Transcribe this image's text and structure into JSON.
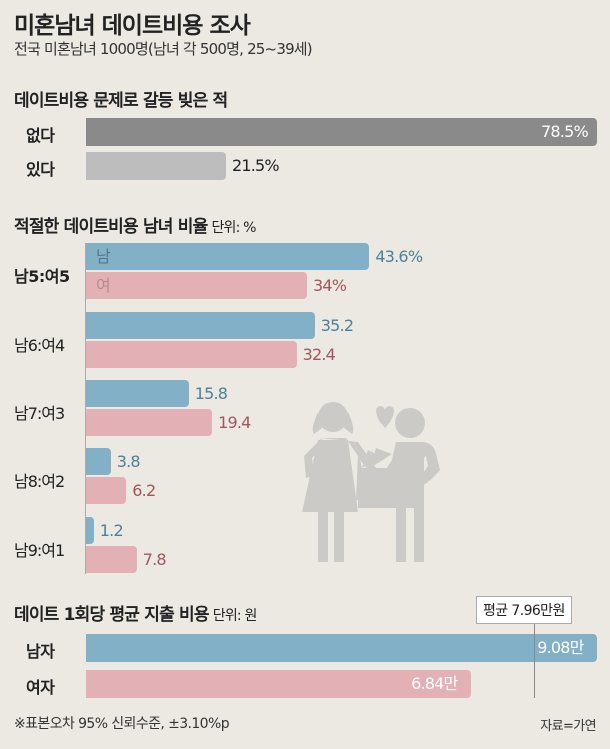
{
  "title": "미혼남녀 데이트비용 조사",
  "subtitle": "전국 미혼남녀 1000명(남녀 각 500명, 25~39세)",
  "colors": {
    "background": "#ebe9e2",
    "no": "#8a8a8a",
    "yes": "#bdbdbd",
    "male": "#82b0c7",
    "female": "#e3b1b5",
    "male_text": "#4d8199",
    "female_text": "#a3555f",
    "illustration": "#cbcac6"
  },
  "illustration": "couple-paying-icon",
  "chart_data": [
    {
      "type": "bar",
      "orientation": "horizontal",
      "title": "데이트비용 문제로 갈등 빚은 적",
      "categories": [
        "없다",
        "있다"
      ],
      "values": [
        78.5,
        21.5
      ],
      "labels": [
        "78.5%",
        "21.5%"
      ],
      "unit": "%"
    },
    {
      "type": "bar",
      "orientation": "horizontal",
      "title": "적절한 데이트비용 남녀 비율",
      "unit_label": "단위: %",
      "categories": [
        "남5:여5",
        "남6:여4",
        "남7:여3",
        "남8:여2",
        "남9:여1"
      ],
      "series": [
        {
          "name": "남",
          "values": [
            43.6,
            35.2,
            15.8,
            3.8,
            1.2
          ],
          "labels": [
            "43.6%",
            "35.2",
            "15.8",
            "3.8",
            "1.2"
          ]
        },
        {
          "name": "여",
          "values": [
            34,
            32.4,
            19.4,
            6.2,
            7.8
          ],
          "labels": [
            "34%",
            "32.4",
            "19.4",
            "6.2",
            "7.8"
          ]
        }
      ]
    },
    {
      "type": "bar",
      "orientation": "horizontal",
      "title": "데이트 1회당 평균 지출 비용",
      "unit_label": "단위: 원",
      "categories": [
        "남자",
        "여자"
      ],
      "values": [
        9.08,
        6.84
      ],
      "labels": [
        "9.08만",
        "6.84만"
      ],
      "average": {
        "value": 7.96,
        "label": "평균 7.96만원"
      }
    }
  ],
  "footnote": "※표본오차 95% 신뢰수준, ±3.10%p",
  "source": "자료=가연"
}
